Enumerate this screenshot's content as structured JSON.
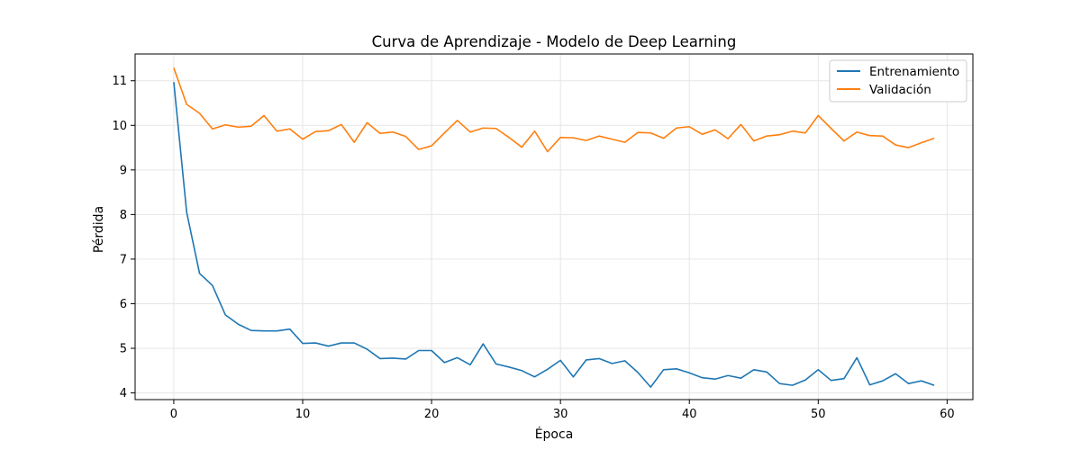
{
  "chart_data": {
    "type": "line",
    "title": "Curva de Aprendizaje - Modelo de Deep Learning",
    "xlabel": "Época",
    "ylabel": "Pérdida",
    "xlim": [
      -3,
      62
    ],
    "ylim": [
      3.85,
      11.6
    ],
    "xticks": [
      0,
      10,
      20,
      30,
      40,
      50,
      60
    ],
    "yticks": [
      4,
      5,
      6,
      7,
      8,
      9,
      10,
      11
    ],
    "grid": true,
    "legend_position": "top-right",
    "x": [
      0,
      1,
      2,
      3,
      4,
      5,
      6,
      7,
      8,
      9,
      10,
      11,
      12,
      13,
      14,
      15,
      16,
      17,
      18,
      19,
      20,
      21,
      22,
      23,
      24,
      25,
      26,
      27,
      28,
      29,
      30,
      31,
      32,
      33,
      34,
      35,
      36,
      37,
      38,
      39,
      40,
      41,
      42,
      43,
      44,
      45,
      46,
      47,
      48,
      49,
      50,
      51,
      52,
      53,
      54,
      55,
      56,
      57,
      58,
      59
    ],
    "series": [
      {
        "name": "Entrenamiento",
        "color": "#1f77b4",
        "values": [
          10.97,
          8.05,
          6.68,
          6.41,
          5.75,
          5.54,
          5.4,
          5.39,
          5.39,
          5.43,
          5.11,
          5.12,
          5.05,
          5.12,
          5.12,
          4.98,
          4.77,
          4.78,
          4.76,
          4.95,
          4.95,
          4.68,
          4.79,
          4.63,
          5.1,
          4.65,
          4.58,
          4.5,
          4.36,
          4.53,
          4.73,
          4.36,
          4.74,
          4.77,
          4.66,
          4.72,
          4.46,
          4.13,
          4.52,
          4.54,
          4.45,
          4.34,
          4.31,
          4.39,
          4.33,
          4.52,
          4.47,
          4.21,
          4.17,
          4.29,
          4.52,
          4.28,
          4.32,
          4.79,
          4.18,
          4.27,
          4.43,
          4.21,
          4.27,
          4.17
        ]
      },
      {
        "name": "Validación",
        "color": "#ff7f0e",
        "values": [
          11.29,
          10.47,
          10.27,
          9.92,
          10.01,
          9.96,
          9.98,
          10.22,
          9.87,
          9.92,
          9.69,
          9.86,
          9.88,
          10.02,
          9.62,
          10.06,
          9.82,
          9.85,
          9.75,
          9.46,
          9.54,
          9.83,
          10.11,
          9.85,
          9.94,
          9.93,
          9.73,
          9.51,
          9.87,
          9.41,
          9.73,
          9.72,
          9.66,
          9.76,
          9.69,
          9.62,
          9.84,
          9.83,
          9.71,
          9.94,
          9.97,
          9.8,
          9.9,
          9.7,
          10.02,
          9.65,
          9.76,
          9.79,
          9.87,
          9.83,
          10.22,
          9.93,
          9.65,
          9.85,
          9.77,
          9.76,
          9.56,
          9.5,
          9.61,
          9.71
        ]
      }
    ]
  }
}
